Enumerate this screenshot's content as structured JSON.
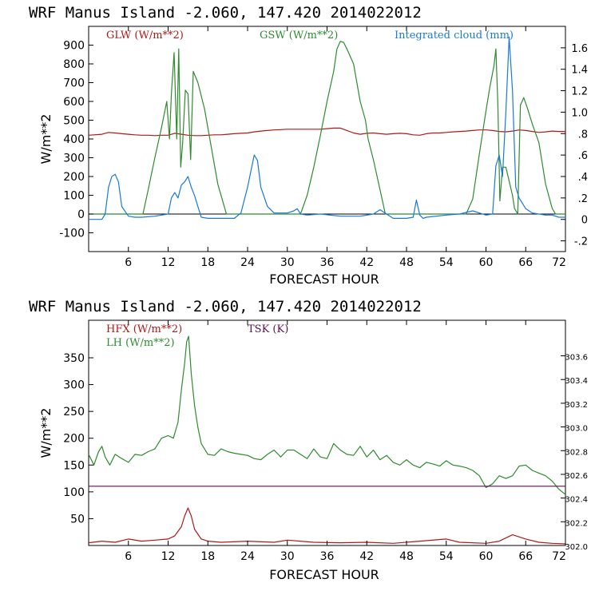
{
  "chart_data": [
    {
      "type": "line",
      "title": "WRF  Manus Island  -2.060, 147.420  2014022012",
      "xlabel": "FORECAST HOUR",
      "ylabel": "W/m**2",
      "xlim": [
        0,
        72
      ],
      "ylim": [
        -200,
        1000
      ],
      "y2lim": [
        -0.3,
        1.8
      ],
      "x_ticks": [
        6,
        12,
        18,
        24,
        30,
        36,
        42,
        48,
        54,
        60,
        66,
        72
      ],
      "y_ticks": [
        -100,
        0,
        100,
        200,
        300,
        400,
        500,
        600,
        700,
        800,
        900
      ],
      "y_tick_labels": [
        "-100",
        "0",
        "100",
        "200",
        "300",
        "400",
        "500",
        "600",
        "700",
        "800",
        "900"
      ],
      "y2_ticks": [
        -0.2,
        0,
        0.2,
        0.4,
        0.6,
        0.8,
        1.0,
        1.2,
        1.4,
        1.6
      ],
      "y2_tick_labels": [
        "-.2",
        "0",
        ".2",
        ".4",
        ".6",
        ".8",
        "1.0",
        "1.2",
        "1.4",
        "1.6"
      ],
      "series": [
        {
          "name": "GLW (W/m**2)",
          "axis": "left",
          "color": "#b01818",
          "x": [
            0,
            2,
            3,
            4,
            5,
            6,
            7,
            8,
            9,
            10,
            11,
            12,
            13,
            14,
            15,
            16,
            17,
            18,
            19,
            20,
            21,
            22,
            23,
            24,
            25,
            26,
            27,
            28,
            29,
            30,
            31,
            32,
            33,
            34,
            35,
            36,
            37,
            38,
            39,
            40,
            41,
            42,
            43,
            44,
            45,
            46,
            47,
            48,
            49,
            50,
            51,
            52,
            53,
            54,
            55,
            56,
            57,
            58,
            59,
            60,
            61,
            62,
            63,
            64,
            65,
            66,
            67,
            68,
            69,
            70,
            71,
            72
          ],
          "y": [
            420,
            425,
            435,
            432,
            428,
            425,
            422,
            420,
            420,
            418,
            420,
            420,
            430,
            425,
            420,
            418,
            418,
            420,
            422,
            422,
            425,
            428,
            430,
            432,
            438,
            442,
            445,
            448,
            450,
            452,
            452,
            452,
            452,
            452,
            452,
            455,
            458,
            458,
            445,
            432,
            425,
            430,
            432,
            428,
            425,
            428,
            430,
            428,
            422,
            420,
            428,
            432,
            432,
            435,
            438,
            440,
            442,
            445,
            448,
            448,
            445,
            440,
            438,
            442,
            448,
            445,
            440,
            435,
            438,
            442,
            440,
            440
          ]
        },
        {
          "name": "GSW (W/m**2)",
          "axis": "left",
          "color": "#2f8b2f",
          "x": [
            0,
            8.2,
            9,
            10,
            11,
            11.8,
            12.2,
            12.5,
            12.9,
            13.3,
            13.6,
            13.9,
            14.2,
            14.6,
            15,
            15.4,
            15.8,
            16.5,
            17.5,
            18.5,
            19.5,
            20.8,
            32,
            33,
            34,
            35,
            36,
            37,
            37.5,
            38,
            38.5,
            39,
            40,
            41,
            41.8,
            42.2,
            43,
            44,
            44.8,
            57,
            58,
            59,
            60,
            60.6,
            61.2,
            61.5,
            61.8,
            62.1,
            62.5,
            63,
            64,
            64.3,
            64.8,
            65.2,
            65.7,
            66.3,
            67,
            68,
            69,
            70,
            70.5,
            72
          ],
          "y": [
            0,
            0,
            130,
            300,
            460,
            600,
            400,
            640,
            860,
            400,
            880,
            250,
            380,
            660,
            640,
            290,
            760,
            700,
            560,
            360,
            160,
            0,
            0,
            100,
            250,
            420,
            600,
            760,
            880,
            920,
            915,
            880,
            800,
            600,
            500,
            400,
            290,
            130,
            0,
            0,
            80,
            320,
            550,
            680,
            790,
            880,
            580,
            70,
            250,
            250,
            100,
            30,
            0,
            580,
            620,
            560,
            480,
            380,
            160,
            30,
            0,
            0
          ]
        },
        {
          "name": "Integrated cloud (mm)",
          "axis": "right",
          "color": "#1a78d8",
          "x": [
            0,
            2,
            2.5,
            3,
            3.5,
            4,
            4.5,
            5,
            6,
            7,
            8,
            10,
            11,
            12,
            12.5,
            13,
            13.5,
            14,
            14.5,
            15,
            15.5,
            16,
            16.5,
            17,
            18,
            19,
            20,
            22,
            23,
            24,
            25,
            25.5,
            26,
            27,
            28,
            30,
            31,
            31.5,
            32,
            33,
            35,
            38,
            41,
            43,
            44,
            45,
            46,
            48,
            49,
            49.5,
            50,
            50.5,
            51,
            54,
            56,
            58,
            60,
            61,
            61.5,
            62,
            62.5,
            63,
            63.5,
            64,
            64.5,
            65,
            66,
            67,
            68,
            69,
            70,
            71,
            72
          ],
          "y": [
            0,
            0,
            0.05,
            0.3,
            0.4,
            0.42,
            0.35,
            0.12,
            0.03,
            0.02,
            0.02,
            0.03,
            0.04,
            0.05,
            0.2,
            0.25,
            0.2,
            0.32,
            0.35,
            0.4,
            0.3,
            0.22,
            0.12,
            0.02,
            0.01,
            0.01,
            0.01,
            0.01,
            0.06,
            0.3,
            0.6,
            0.55,
            0.3,
            0.12,
            0.06,
            0.06,
            0.08,
            0.1,
            0.05,
            0.04,
            0.05,
            0.03,
            0.03,
            0.05,
            0.09,
            0.05,
            0.01,
            0.01,
            0.02,
            0.18,
            0.04,
            0.01,
            0.02,
            0.04,
            0.05,
            0.08,
            0.04,
            0.05,
            0.5,
            0.6,
            0.4,
            1.0,
            1.7,
            1.2,
            0.3,
            0.2,
            0.1,
            0.06,
            0.05,
            0.04,
            0.04,
            0.02,
            0.02
          ]
        }
      ]
    },
    {
      "type": "line",
      "title": "WRF  Manus Island  -2.060, 147.420  2014022012",
      "xlabel": "FORECAST HOUR",
      "ylabel": "W/m**2",
      "xlim": [
        0,
        72
      ],
      "ylim": [
        0,
        420
      ],
      "y2lim": [
        302.0,
        303.9
      ],
      "x_ticks": [
        6,
        12,
        18,
        24,
        30,
        36,
        42,
        48,
        54,
        60,
        66,
        72
      ],
      "y_ticks": [
        50,
        100,
        150,
        200,
        250,
        300,
        350
      ],
      "y_tick_labels": [
        "50",
        "100",
        "150",
        "200",
        "250",
        "300",
        "350"
      ],
      "y2_ticks": [
        302.0,
        302.2,
        302.4,
        302.6,
        302.8,
        303.0,
        303.2,
        303.4,
        303.6
      ],
      "y2_tick_labels": [
        "302.0",
        "302.2",
        "302.4",
        "302.6",
        "302.8",
        "303.0",
        "303.2",
        "303.4",
        "303.6"
      ],
      "series": [
        {
          "name": "HFX (W/m**2)",
          "axis": "left",
          "color": "#b01818",
          "x": [
            0,
            2,
            4,
            6,
            8,
            10,
            12,
            13,
            14,
            14.5,
            15,
            15.5,
            16,
            17,
            18,
            20,
            24,
            28,
            30,
            34,
            38,
            42,
            46,
            50,
            54,
            56,
            60,
            62,
            64,
            66,
            68,
            70,
            72
          ],
          "y": [
            5,
            8,
            6,
            12,
            8,
            10,
            12,
            18,
            35,
            55,
            70,
            55,
            30,
            12,
            8,
            6,
            8,
            6,
            10,
            6,
            5,
            6,
            4,
            8,
            12,
            6,
            4,
            8,
            20,
            12,
            6,
            4,
            3
          ]
        },
        {
          "name": "LH (W/m**2)",
          "axis": "left",
          "color": "#2f8b2f",
          "x": [
            0,
            0.8,
            1.5,
            2,
            2.5,
            3.2,
            4,
            5,
            6,
            7,
            8,
            9,
            10,
            11,
            12,
            12.8,
            13.5,
            14,
            14.5,
            14.8,
            15.1,
            15.5,
            16,
            16.5,
            17,
            18,
            19,
            20,
            21,
            22,
            23,
            24,
            25,
            26,
            27,
            28,
            29,
            30,
            31,
            32,
            33,
            34,
            35,
            36,
            37,
            38,
            39,
            40,
            41,
            42,
            43,
            44,
            45,
            46,
            47,
            48,
            49,
            50,
            51,
            52,
            53,
            54,
            55,
            56,
            57,
            58,
            59,
            60,
            61,
            62,
            63,
            64,
            65,
            66,
            67,
            68,
            69,
            70,
            71,
            72
          ],
          "y": [
            170,
            150,
            175,
            185,
            165,
            150,
            170,
            162,
            155,
            170,
            168,
            175,
            180,
            200,
            205,
            200,
            230,
            290,
            340,
            380,
            390,
            320,
            260,
            220,
            190,
            170,
            168,
            180,
            175,
            172,
            170,
            168,
            162,
            160,
            170,
            178,
            165,
            178,
            178,
            170,
            162,
            180,
            165,
            162,
            190,
            178,
            170,
            168,
            185,
            165,
            178,
            160,
            168,
            155,
            150,
            160,
            150,
            145,
            155,
            152,
            148,
            158,
            150,
            148,
            145,
            140,
            130,
            108,
            115,
            130,
            125,
            130,
            148,
            150,
            140,
            135,
            130,
            120,
            105,
            95
          ]
        },
        {
          "name": "TSK (K)",
          "axis": "right",
          "color": "#5a1050",
          "x": [
            0,
            72
          ],
          "y": [
            302.5,
            302.5
          ]
        }
      ]
    }
  ]
}
